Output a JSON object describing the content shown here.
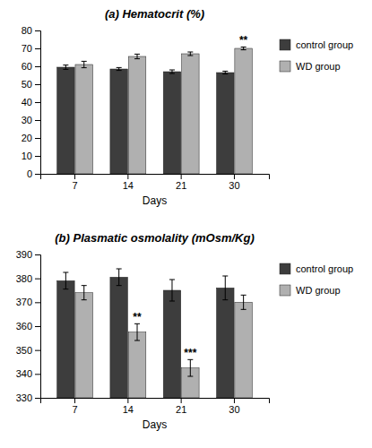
{
  "chart_data": [
    {
      "type": "bar",
      "title": "(a) Hematocrit (%)",
      "xlabel": "Days",
      "categories": [
        "7",
        "14",
        "21",
        "30"
      ],
      "series": [
        {
          "name": "control group",
          "color": "#3d3d3d",
          "values": [
            59.5,
            58.5,
            57.0,
            56.5
          ],
          "errors": [
            1.2,
            0.8,
            1.0,
            0.8
          ]
        },
        {
          "name": "WD group",
          "color": "#b0b0b0",
          "values": [
            61.0,
            65.5,
            67.0,
            70.0
          ],
          "errors": [
            1.8,
            1.3,
            1.0,
            0.8
          ],
          "annotations": [
            null,
            null,
            null,
            "**"
          ]
        }
      ],
      "ylim": [
        0,
        80
      ],
      "yticks": [
        0,
        10,
        20,
        30,
        40,
        50,
        60,
        70,
        80
      ],
      "grid": false,
      "legend": "right"
    },
    {
      "type": "bar",
      "title": "(b) Plasmatic osmolality (mOsm/Kg)",
      "xlabel": "Days",
      "categories": [
        "7",
        "14",
        "21",
        "30"
      ],
      "series": [
        {
          "name": "control group",
          "color": "#3d3d3d",
          "values": [
            379.0,
            380.5,
            375.0,
            376.0
          ],
          "errors": [
            3.5,
            3.5,
            4.5,
            5.0
          ]
        },
        {
          "name": "WD group",
          "color": "#b0b0b0",
          "values": [
            374.0,
            357.5,
            342.5,
            370.0
          ],
          "errors": [
            3.0,
            3.5,
            3.5,
            3.0
          ],
          "annotations": [
            null,
            "**",
            "***",
            null
          ]
        }
      ],
      "ylim": [
        330,
        390
      ],
      "yticks": [
        330,
        340,
        350,
        360,
        370,
        380,
        390
      ],
      "grid": false,
      "legend": "right"
    }
  ]
}
